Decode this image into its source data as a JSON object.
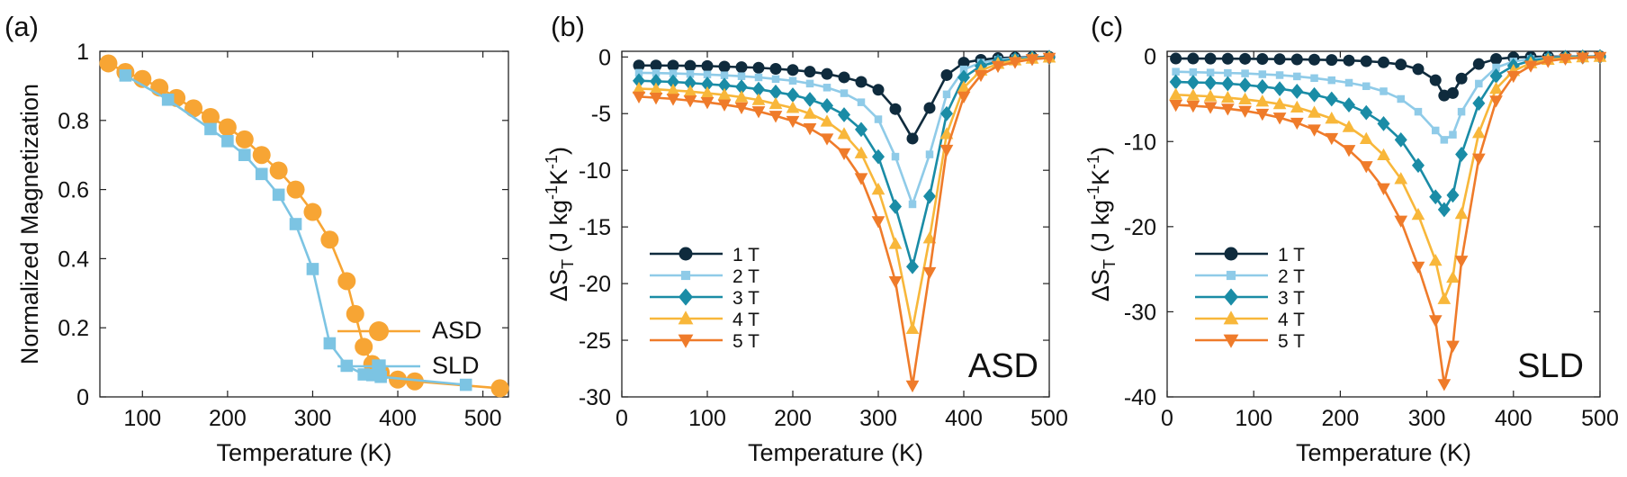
{
  "colors": {
    "ASD": "#F7A534",
    "SLD": "#7CC4E3",
    "1 T": "#0F2B3D",
    "2 T": "#8FCBE8",
    "3 T": "#1A8CA6",
    "4 T": "#F8B73A",
    "5 T": "#EF7B2A"
  },
  "markers": {
    "ASD": "circle",
    "SLD": "square",
    "1 T": "circle",
    "2 T": "square",
    "3 T": "diamond",
    "4 T": "triangle-up",
    "5 T": "triangle-down"
  },
  "chart_data": [
    {
      "panel": "(a)",
      "type": "line",
      "xlabel": "Temperature (K)",
      "ylabel": "Normalized Magnetization",
      "xlim": [
        50,
        530
      ],
      "ylim": [
        0,
        1
      ],
      "xticks": [
        100,
        200,
        300,
        400,
        500
      ],
      "yticks": [
        0,
        0.2,
        0.4,
        0.6,
        0.8,
        1
      ],
      "ytick_labels": [
        "0",
        "0.2",
        "0.4",
        "0.6",
        "0.8",
        "1"
      ],
      "legend": "top-right",
      "series": [
        {
          "name": "ASD",
          "x": [
            60,
            80,
            100,
            120,
            140,
            160,
            180,
            200,
            220,
            240,
            260,
            280,
            300,
            320,
            340,
            350,
            360,
            370,
            380,
            400,
            420,
            520
          ],
          "y": [
            0.965,
            0.94,
            0.92,
            0.895,
            0.865,
            0.835,
            0.81,
            0.78,
            0.745,
            0.7,
            0.655,
            0.6,
            0.535,
            0.455,
            0.335,
            0.24,
            0.145,
            0.095,
            0.07,
            0.05,
            0.045,
            0.025
          ]
        },
        {
          "name": "SLD",
          "x": [
            80,
            130,
            180,
            200,
            220,
            240,
            260,
            280,
            300,
            320,
            340,
            360,
            370,
            380,
            480
          ],
          "y": [
            0.93,
            0.86,
            0.775,
            0.74,
            0.7,
            0.645,
            0.585,
            0.5,
            0.37,
            0.155,
            0.09,
            0.065,
            0.063,
            0.058,
            0.035
          ]
        }
      ]
    },
    {
      "panel": "(b)",
      "type": "line",
      "xlabel": "Temperature (K)",
      "ylabel": "ΔS_T (J kg⁻¹K⁻¹)",
      "xlim": [
        0,
        500
      ],
      "ylim": [
        -30,
        0.5
      ],
      "xticks": [
        0,
        100,
        200,
        300,
        400,
        500
      ],
      "yticks": [
        0,
        -5,
        -10,
        -15,
        -20,
        -25,
        -30
      ],
      "annotation": "ASD",
      "legend": "bottom-left",
      "x": [
        20,
        40,
        60,
        80,
        100,
        120,
        140,
        160,
        180,
        200,
        220,
        240,
        260,
        280,
        300,
        320,
        340,
        360,
        380,
        400,
        420,
        440,
        460,
        480,
        500
      ],
      "series": [
        {
          "name": "1 T",
          "y": [
            -0.75,
            -0.75,
            -0.76,
            -0.78,
            -0.8,
            -0.85,
            -0.9,
            -0.95,
            -1.05,
            -1.15,
            -1.3,
            -1.5,
            -1.8,
            -2.2,
            -2.9,
            -4.6,
            -7.2,
            -4.5,
            -1.6,
            -0.5,
            -0.25,
            -0.1,
            -0.05,
            -0.02,
            0.0
          ]
        },
        {
          "name": "2 T",
          "y": [
            -1.4,
            -1.42,
            -1.45,
            -1.5,
            -1.55,
            -1.62,
            -1.7,
            -1.8,
            -1.95,
            -2.1,
            -2.35,
            -2.7,
            -3.2,
            -4.0,
            -5.5,
            -8.8,
            -13.0,
            -8.6,
            -3.3,
            -1.1,
            -0.5,
            -0.25,
            -0.12,
            -0.05,
            -0.02
          ]
        },
        {
          "name": "3 T",
          "y": [
            -2.1,
            -2.15,
            -2.2,
            -2.3,
            -2.4,
            -2.5,
            -2.65,
            -2.85,
            -3.1,
            -3.35,
            -3.75,
            -4.3,
            -5.1,
            -6.4,
            -8.8,
            -13.2,
            -18.5,
            -12.3,
            -5.0,
            -1.8,
            -0.8,
            -0.4,
            -0.2,
            -0.08,
            -0.03
          ]
        },
        {
          "name": "4 T",
          "y": [
            -2.8,
            -2.85,
            -2.95,
            -3.05,
            -3.2,
            -3.35,
            -3.55,
            -3.8,
            -4.15,
            -4.5,
            -5.0,
            -5.7,
            -6.8,
            -8.5,
            -11.7,
            -16.5,
            -24.0,
            -16.0,
            -6.8,
            -2.7,
            -1.2,
            -0.6,
            -0.3,
            -0.15,
            -0.05
          ]
        },
        {
          "name": "5 T",
          "y": [
            -3.5,
            -3.6,
            -3.7,
            -3.85,
            -4.0,
            -4.2,
            -4.45,
            -4.8,
            -5.2,
            -5.65,
            -6.3,
            -7.2,
            -8.5,
            -10.7,
            -14.5,
            -19.8,
            -29.0,
            -19.0,
            -8.2,
            -3.5,
            -1.6,
            -0.8,
            -0.45,
            -0.2,
            -0.08
          ]
        }
      ]
    },
    {
      "panel": "(c)",
      "type": "line",
      "xlabel": "Temperature (K)",
      "ylabel": "ΔS_T (J kg⁻¹K⁻¹)",
      "xlim": [
        0,
        500
      ],
      "ylim": [
        -40,
        0.6
      ],
      "xticks": [
        0,
        100,
        200,
        300,
        400,
        500
      ],
      "yticks": [
        0,
        -10,
        -20,
        -30,
        -40
      ],
      "annotation": "SLD",
      "legend": "bottom-left",
      "x": [
        10,
        30,
        50,
        70,
        90,
        110,
        130,
        150,
        170,
        190,
        210,
        230,
        250,
        270,
        290,
        310,
        320,
        330,
        340,
        360,
        380,
        400,
        420,
        440,
        460,
        480,
        500
      ],
      "series": [
        {
          "name": "1 T",
          "y": [
            -0.25,
            -0.25,
            -0.26,
            -0.27,
            -0.28,
            -0.3,
            -0.32,
            -0.35,
            -0.38,
            -0.42,
            -0.48,
            -0.56,
            -0.7,
            -0.95,
            -1.5,
            -2.8,
            -4.6,
            -4.3,
            -2.6,
            -0.9,
            -0.3,
            -0.12,
            -0.05,
            -0.03,
            -0.02,
            -0.01,
            0.0
          ]
        },
        {
          "name": "2 T",
          "y": [
            -1.8,
            -1.85,
            -1.9,
            -1.95,
            -2.0,
            -2.1,
            -2.2,
            -2.35,
            -2.55,
            -2.8,
            -3.1,
            -3.5,
            -4.1,
            -5.0,
            -6.5,
            -8.7,
            -9.8,
            -9.2,
            -6.5,
            -3.2,
            -1.3,
            -0.6,
            -0.3,
            -0.15,
            -0.08,
            -0.04,
            -0.02
          ]
        },
        {
          "name": "3 T",
          "y": [
            -3.0,
            -3.05,
            -3.1,
            -3.2,
            -3.35,
            -3.55,
            -3.8,
            -4.1,
            -4.5,
            -5.0,
            -5.7,
            -6.6,
            -7.9,
            -9.8,
            -12.8,
            -16.5,
            -18.0,
            -16.3,
            -11.5,
            -5.5,
            -2.3,
            -1.1,
            -0.5,
            -0.25,
            -0.12,
            -0.06,
            -0.03
          ]
        },
        {
          "name": "4 T",
          "y": [
            -4.5,
            -4.6,
            -4.7,
            -4.85,
            -5.05,
            -5.3,
            -5.6,
            -6.0,
            -6.6,
            -7.3,
            -8.3,
            -9.7,
            -11.6,
            -14.4,
            -18.6,
            -24.0,
            -28.5,
            -26.0,
            -18.5,
            -9.0,
            -3.8,
            -1.7,
            -0.8,
            -0.4,
            -0.2,
            -0.1,
            -0.05
          ]
        },
        {
          "name": "5 T",
          "y": [
            -5.7,
            -5.8,
            -5.95,
            -6.15,
            -6.4,
            -6.75,
            -7.2,
            -7.8,
            -8.6,
            -9.6,
            -11.0,
            -12.9,
            -15.5,
            -19.3,
            -24.7,
            -31.0,
            -38.5,
            -34.0,
            -24.0,
            -12.0,
            -5.2,
            -2.3,
            -1.1,
            -0.55,
            -0.28,
            -0.14,
            -0.07
          ]
        }
      ]
    }
  ]
}
